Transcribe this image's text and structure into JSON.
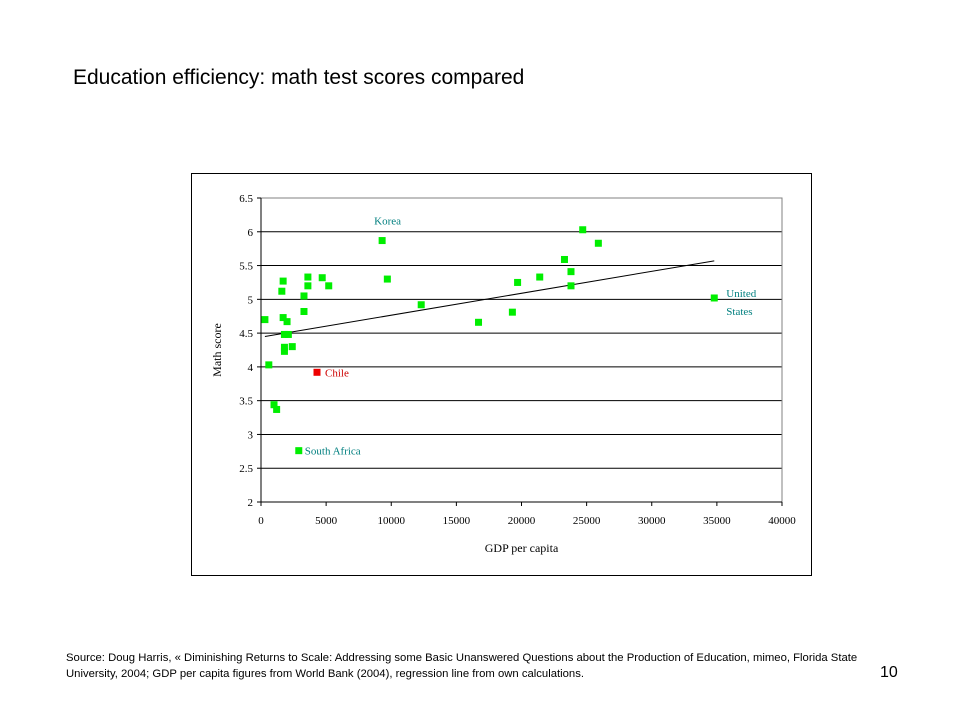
{
  "slide": {
    "title": "Education efficiency: math test scores compared",
    "source": "Source: Doug Harris, « Diminishing Returns to Scale: Addressing some Basic Unanswered  Questions about the Production of Education, mimeo, Florida State University, 2004; GDP per capita figures from World Bank (2004),  regression line  from own calculations.",
    "page_number": "10"
  },
  "chart_data": {
    "type": "scatter",
    "title": "",
    "xlabel": "GDP per capita",
    "ylabel": "Math score",
    "xlim": [
      0,
      40000
    ],
    "ylim": [
      2,
      6.5
    ],
    "xticks": [
      0,
      5000,
      10000,
      15000,
      20000,
      25000,
      30000,
      35000,
      40000
    ],
    "yticks": [
      2,
      2.5,
      3,
      3.5,
      4,
      4.5,
      5,
      5.5,
      6,
      6.5
    ],
    "grid": "horizontal",
    "colors": {
      "points": "#00ee00",
      "highlight": "#ee0000",
      "labels": "#007f7f",
      "highlight_label": "#cc0000"
    },
    "series": [
      {
        "color": "#00ee00",
        "points": [
          [
            300,
            4.7
          ],
          [
            600,
            4.03
          ],
          [
            1000,
            3.44
          ],
          [
            1200,
            3.37
          ],
          [
            1600,
            5.12
          ],
          [
            1700,
            5.27
          ],
          [
            1700,
            4.73
          ],
          [
            1800,
            4.48
          ],
          [
            1800,
            4.29
          ],
          [
            1800,
            4.23
          ],
          [
            2000,
            4.67
          ],
          [
            2100,
            4.48
          ],
          [
            2400,
            4.3
          ],
          [
            2900,
            2.76
          ],
          [
            3300,
            5.05
          ],
          [
            3300,
            4.82
          ],
          [
            3600,
            5.33
          ],
          [
            3600,
            5.2
          ],
          [
            4700,
            5.32
          ],
          [
            5200,
            5.2
          ],
          [
            9300,
            5.87
          ],
          [
            9700,
            5.3
          ],
          [
            12300,
            4.92
          ],
          [
            16700,
            4.66
          ],
          [
            19300,
            4.81
          ],
          [
            19700,
            5.25
          ],
          [
            21400,
            5.33
          ],
          [
            23300,
            5.59
          ],
          [
            23800,
            5.41
          ],
          [
            23800,
            5.2
          ],
          [
            24700,
            6.03
          ],
          [
            25900,
            5.83
          ],
          [
            34800,
            5.02
          ]
        ]
      },
      {
        "name": "Chile",
        "color": "#ee0000",
        "points": [
          [
            4300,
            3.92
          ]
        ]
      }
    ],
    "annotations": [
      {
        "text": "Korea",
        "x": 9300,
        "y": 5.87,
        "color": "#007f7f"
      },
      {
        "text": "Chile",
        "x": 4300,
        "y": 3.92,
        "color": "#cc0000"
      },
      {
        "text": "South Africa",
        "x": 2900,
        "y": 2.76,
        "color": "#007f7f"
      },
      {
        "text": "United",
        "x": 34800,
        "y": 5.02,
        "color": "#007f7f"
      },
      {
        "text": "States",
        "x": 34800,
        "y": 5.02,
        "color": "#007f7f"
      }
    ],
    "regression_line": {
      "x": [
        300,
        34800
      ],
      "y": [
        4.45,
        5.57
      ]
    }
  }
}
